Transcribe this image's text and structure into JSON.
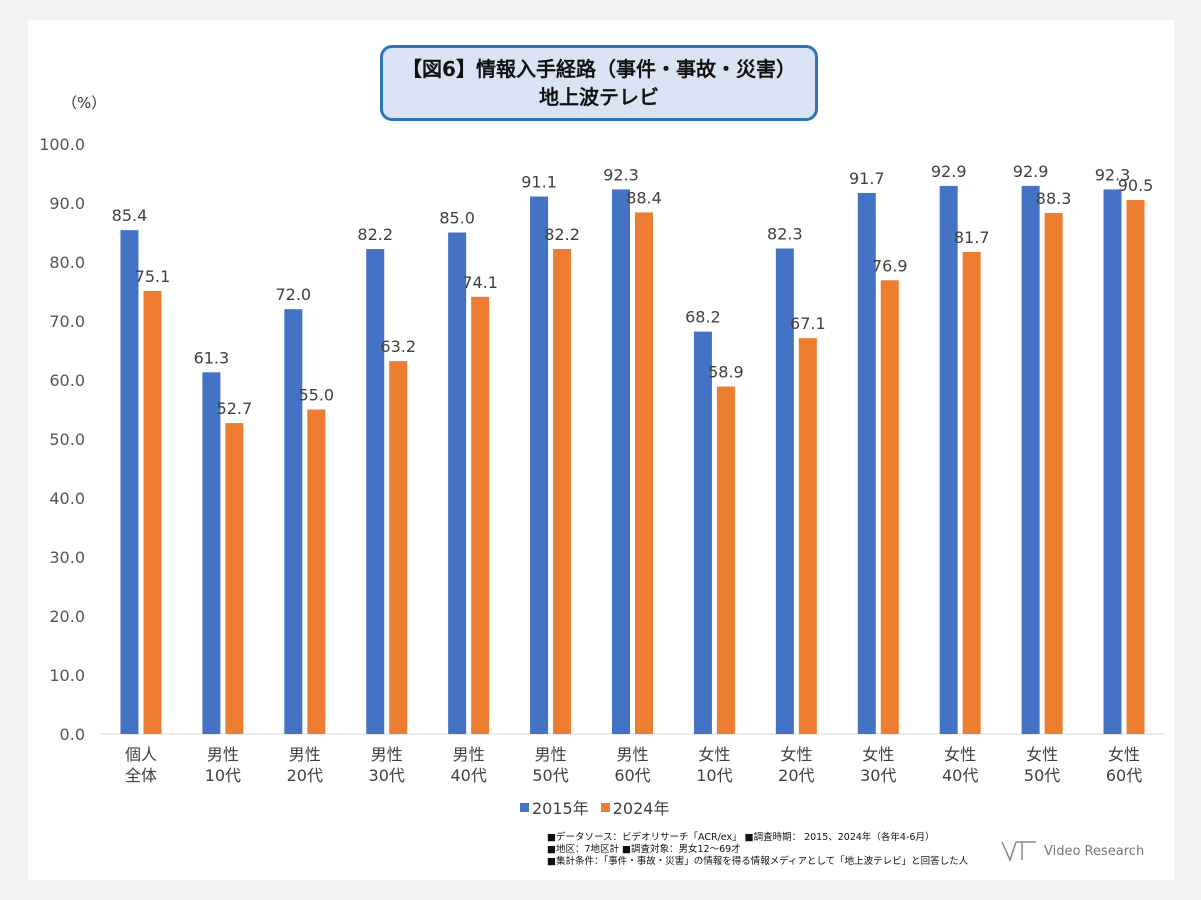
{
  "title": {
    "line1": "【図6】情報入手経路（事件・事故・災害）",
    "line2": "地上波テレビ"
  },
  "unit": "（%）",
  "colors": {
    "s2015": "#4472c4",
    "s2024": "#ed7d31",
    "axis": "#d9d9d9"
  },
  "chart_data": {
    "type": "bar",
    "categories": [
      [
        "個人",
        "全体"
      ],
      [
        "男性",
        "10代"
      ],
      [
        "男性",
        "20代"
      ],
      [
        "男性",
        "30代"
      ],
      [
        "男性",
        "40代"
      ],
      [
        "男性",
        "50代"
      ],
      [
        "男性",
        "60代"
      ],
      [
        "女性",
        "10代"
      ],
      [
        "女性",
        "20代"
      ],
      [
        "女性",
        "30代"
      ],
      [
        "女性",
        "40代"
      ],
      [
        "女性",
        "50代"
      ],
      [
        "女性",
        "60代"
      ]
    ],
    "series": [
      {
        "name": "2015年",
        "values": [
          85.4,
          61.3,
          72.0,
          82.2,
          85.0,
          91.1,
          92.3,
          68.2,
          82.3,
          91.7,
          92.9,
          92.9,
          92.3
        ]
      },
      {
        "name": "2024年",
        "values": [
          75.1,
          52.7,
          55.0,
          63.2,
          74.1,
          82.2,
          88.4,
          58.9,
          67.1,
          76.9,
          81.7,
          88.3,
          90.5
        ]
      }
    ],
    "ylim": [
      0,
      100
    ],
    "yticks": [
      "0.0",
      "10.0",
      "20.0",
      "30.0",
      "40.0",
      "50.0",
      "60.0",
      "70.0",
      "80.0",
      "90.0",
      "100.0"
    ],
    "legend_position": "bottom"
  },
  "notes": [
    "■データソース：ビデオリサーチ「ACR/ex」 ■調査時期： 2015、2024年（各年4-6月）",
    "■地区：7地区計 ■調査対象：男女12～69才",
    "■集計条件：「事件・事故・災害」の情報を得る情報メディアとして「地上波テレビ」と回答した人"
  ],
  "logo": {
    "text": "Video Research",
    "icon": "video-research-logo-icon"
  }
}
